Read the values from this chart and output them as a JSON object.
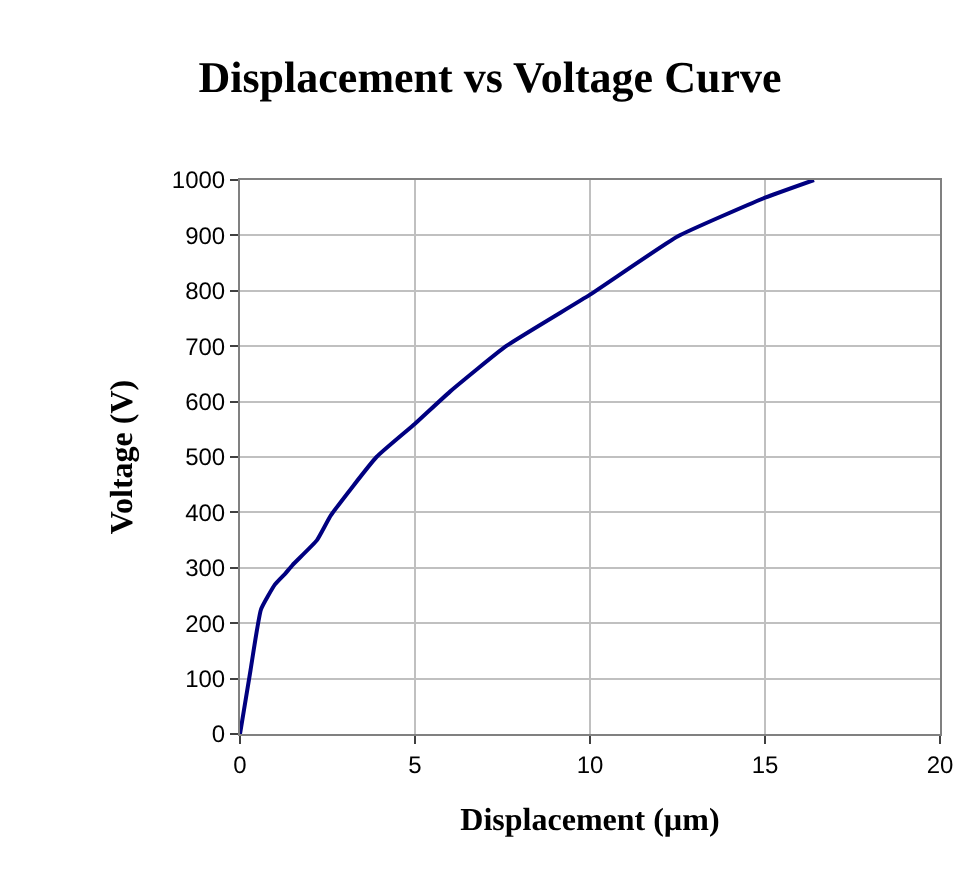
{
  "chart_data": {
    "type": "line",
    "title": "Displacement vs Voltage Curve",
    "xlabel": "Displacement (µm)",
    "ylabel": "Voltage (V)",
    "xlim": [
      0,
      20
    ],
    "xticks": [
      0,
      5,
      10,
      15,
      20
    ],
    "ylim": [
      0,
      1000
    ],
    "yticks": [
      0,
      100,
      200,
      300,
      400,
      500,
      600,
      700,
      800,
      900,
      1000
    ],
    "grid": true,
    "legend": false,
    "marker": "none",
    "line_style": "solid",
    "series": [
      {
        "color": "#000080",
        "x": [
          0,
          0.3,
          0.6,
          1.0,
          1.3,
          1.5,
          2.2,
          2.6,
          3.9,
          5,
          6,
          7.6,
          10,
          12.5,
          15,
          16.4
        ],
        "values": [
          0,
          115,
          225,
          270,
          290,
          305,
          350,
          395,
          500,
          560,
          618,
          700,
          793,
          898,
          968,
          1000
        ]
      }
    ]
  }
}
